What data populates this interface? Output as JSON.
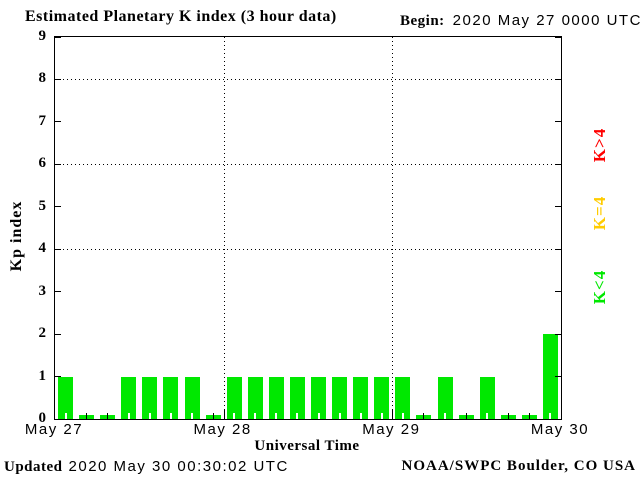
{
  "title": "Estimated Planetary K index (3 hour data)",
  "begin": {
    "label": "Begin:",
    "value": "2020 May 27 0000 UTC"
  },
  "footer": {
    "updated_label": "Updated",
    "updated_value": "2020 May 30 00:30:02 UTC",
    "source": "NOAA/SWPC Boulder, CO USA"
  },
  "legend": [
    {
      "label": "K>4",
      "color": "#ff0000"
    },
    {
      "label": "K=4",
      "color": "#ffcc00"
    },
    {
      "label": "K<4",
      "color": "#00e800"
    }
  ],
  "chart_data": {
    "type": "bar",
    "title": "Estimated Planetary K index (3 hour data)",
    "xlabel": "Universal Time",
    "ylabel": "Kp index",
    "ylim": [
      0,
      9
    ],
    "yticks": [
      0,
      1,
      2,
      3,
      4,
      5,
      6,
      7,
      8,
      9
    ],
    "grid_y": [
      4,
      6,
      8
    ],
    "grid_on": true,
    "legend_position": "right",
    "bar_color": "#00e800",
    "threshold_colors": {
      "below_4": "#00e800",
      "equal_4": "#ffcc00",
      "above_4": "#ff0000"
    },
    "x_day_labels": [
      "May 27",
      "May 28",
      "May 29",
      "May 30"
    ],
    "bars_per_day": 8,
    "hours_per_bar": 3,
    "series": [
      {
        "name": "Kp",
        "values": [
          1,
          0,
          0,
          1,
          1,
          1,
          1,
          0,
          1,
          1,
          1,
          1,
          1,
          1,
          1,
          1,
          1,
          0,
          1,
          0,
          1,
          0,
          0,
          2
        ]
      }
    ]
  }
}
